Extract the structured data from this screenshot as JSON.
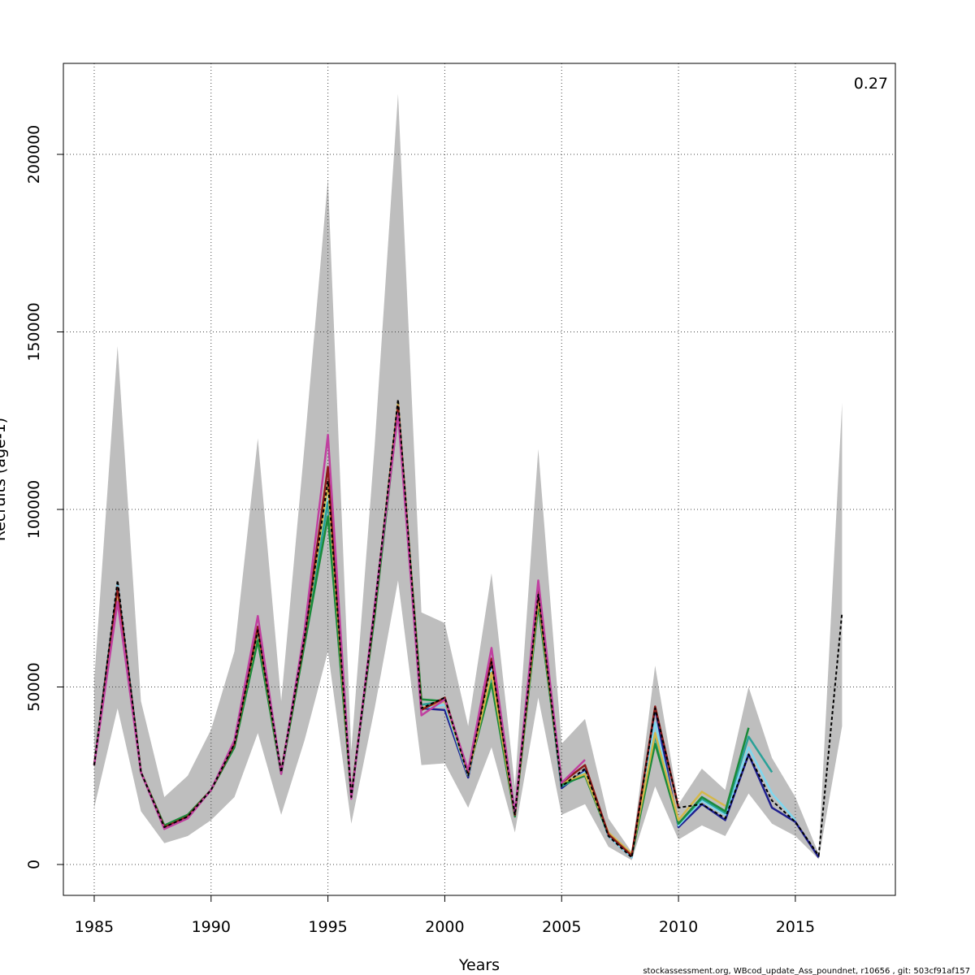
{
  "chart_data": {
    "type": "line",
    "xlabel": "Years",
    "ylabel": "Recruits (age-1)",
    "annotation": "0.27",
    "footer": "stockassessment.org, WBcod_update_Ass_poundnet, r10656 , git: 503cf91af157",
    "x": [
      1985,
      1986,
      1987,
      1988,
      1989,
      1990,
      1991,
      1992,
      1993,
      1994,
      1995,
      1996,
      1997,
      1998,
      1999,
      2000,
      2001,
      2002,
      2003,
      2004,
      2005,
      2006,
      2007,
      2008,
      2009,
      2010,
      2011,
      2012,
      2013,
      2014,
      2015,
      2016,
      2017
    ],
    "band": {
      "color": "#bebebe",
      "lower": [
        16000,
        44000,
        15000,
        6000,
        8000,
        12500,
        19000,
        37000,
        14000,
        35000,
        60000,
        11500,
        44000,
        80000,
        28000,
        28500,
        16000,
        33000,
        9000,
        47000,
        14000,
        17000,
        5000,
        1200,
        22000,
        7000,
        11000,
        8000,
        20000,
        11500,
        8000,
        1500,
        39000
      ],
      "upper": [
        52000,
        146000,
        46000,
        19000,
        25000,
        38000,
        60000,
        120000,
        46000,
        118000,
        193000,
        32000,
        118000,
        217000,
        71000,
        68000,
        39000,
        82000,
        22000,
        117000,
        34000,
        41000,
        13000,
        3500,
        56000,
        17000,
        27000,
        21000,
        50000,
        30000,
        19000,
        3000,
        130000
      ]
    },
    "series": [
      {
        "color": "#1f1f8f",
        "values": [
          28000,
          79000,
          26000,
          10500,
          13500,
          21000,
          34000,
          65000,
          26000,
          63000,
          105000,
          19000,
          71000,
          130000,
          44000,
          43500,
          24500,
          56000,
          14000,
          75000,
          21500,
          26500,
          8000,
          2000,
          44000,
          10500,
          17000,
          12500,
          31000,
          16000,
          12000,
          2000,
          null
        ]
      },
      {
        "color": "#7fd7ef",
        "values": [
          28000,
          79000,
          26000,
          10500,
          13500,
          21000,
          34000,
          65000,
          26000,
          63000,
          104000,
          19000,
          71000,
          129000,
          44000,
          45000,
          25000,
          55000,
          14000,
          75000,
          22000,
          26000,
          8000,
          2000,
          40000,
          11000,
          18000,
          14000,
          33000,
          20000,
          12500,
          null,
          null
        ]
      },
      {
        "color": "#2aa198",
        "values": [
          28000,
          78000,
          26000,
          10500,
          13500,
          21000,
          33500,
          64000,
          26000,
          63000,
          102000,
          19000,
          71000,
          129000,
          45000,
          46000,
          25500,
          53000,
          14000,
          74000,
          22000,
          25500,
          8500,
          2500,
          36000,
          11500,
          18500,
          14500,
          36000,
          26000,
          null,
          null,
          null
        ]
      },
      {
        "color": "#1a8a3a",
        "values": [
          28000,
          78000,
          26000,
          11000,
          14000,
          21000,
          33000,
          63000,
          25500,
          62000,
          98000,
          19500,
          70000,
          128000,
          46500,
          46000,
          26000,
          51000,
          13500,
          73000,
          22500,
          25000,
          8500,
          2500,
          34000,
          11500,
          19000,
          15000,
          38500,
          null,
          null,
          null,
          null
        ]
      },
      {
        "color": "#d4b84a",
        "values": [
          28000,
          77000,
          26000,
          10500,
          13500,
          21000,
          34000,
          66000,
          26000,
          64000,
          107000,
          19000,
          72000,
          130000,
          44000,
          46000,
          25500,
          54000,
          14000,
          75000,
          23000,
          25500,
          9000,
          3000,
          37000,
          12500,
          20500,
          16500,
          null,
          null,
          null,
          null,
          null
        ]
      },
      {
        "color": "#8b1a1a",
        "values": [
          28000,
          78000,
          26000,
          10500,
          13500,
          21000,
          34000,
          67000,
          26000,
          64000,
          112000,
          19000,
          72000,
          129000,
          43500,
          47000,
          26000,
          58000,
          14000,
          77000,
          23000,
          28000,
          8500,
          2500,
          44500,
          16000,
          null,
          null,
          null,
          null,
          null,
          null,
          null
        ]
      },
      {
        "color": "#c040a0",
        "values": [
          28000,
          74000,
          26000,
          10000,
          13000,
          21000,
          35000,
          70000,
          25500,
          66000,
          121000,
          18500,
          73000,
          127000,
          42000,
          46500,
          26500,
          61000,
          14500,
          80000,
          23000,
          29500,
          null,
          null,
          null,
          null,
          null,
          null,
          null,
          null,
          null,
          null,
          null
        ]
      },
      {
        "color": "#000000",
        "dashed": true,
        "values": [
          28000,
          80000,
          26000,
          10500,
          13500,
          21000,
          34000,
          66000,
          26000,
          64000,
          108000,
          19000,
          72000,
          131000,
          44000,
          47000,
          25000,
          57000,
          14000,
          76000,
          22000,
          27000,
          8000,
          2000,
          44000,
          16000,
          17000,
          13000,
          31000,
          18000,
          12000,
          2500,
          71000
        ]
      }
    ],
    "xlim": [
      1983.68,
      2019.28
    ],
    "ylim": [
      -8696,
      225629
    ],
    "xticks": [
      1985,
      1990,
      1995,
      2000,
      2005,
      2010,
      2015
    ],
    "yticks": [
      0,
      50000,
      100000,
      150000,
      200000
    ],
    "grid": true
  }
}
